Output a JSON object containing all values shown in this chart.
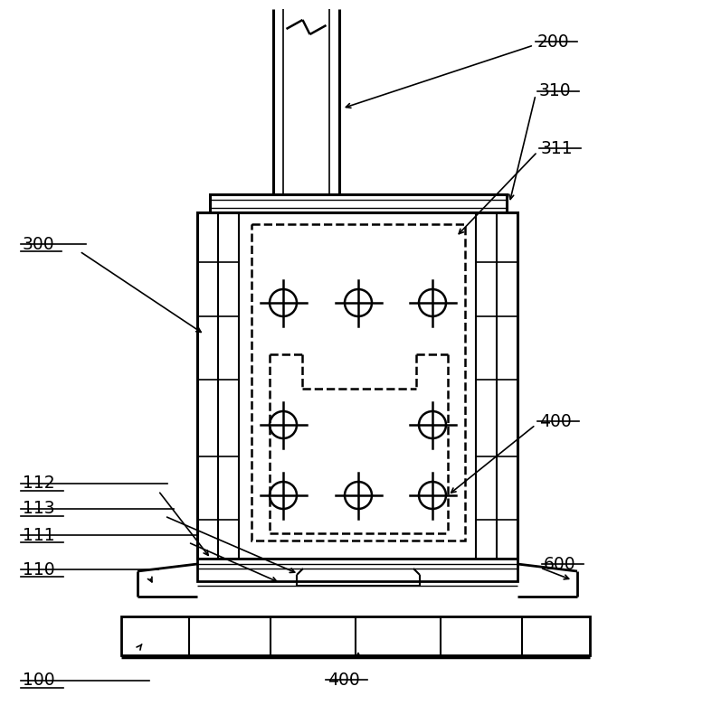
{
  "bg_color": "#ffffff",
  "line_color": "#000000",
  "fig_width": 7.87,
  "fig_height": 8.01,
  "dpi": 100
}
